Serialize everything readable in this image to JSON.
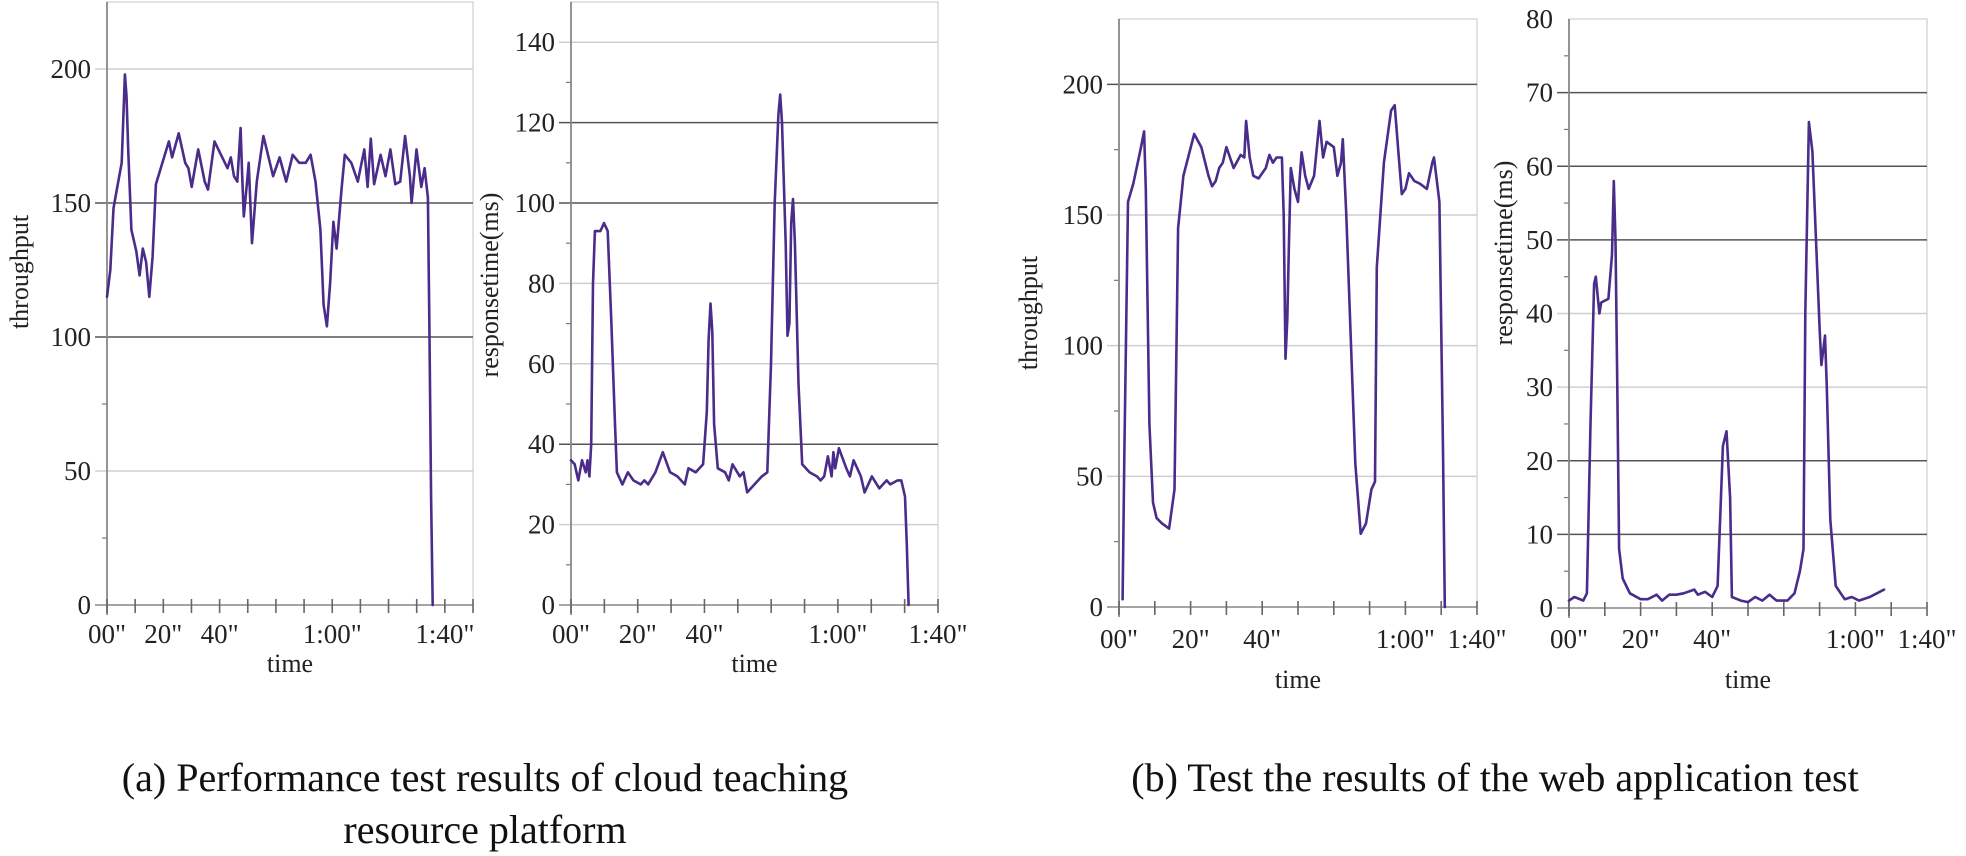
{
  "figure": {
    "caption_a_line1": "(a) Performance test results of cloud teaching",
    "caption_a_line2": "resource platform",
    "caption_b": "(b) Test the results of the web application test",
    "line_color": "#4a2c8a",
    "grid_major_color": "#555555",
    "grid_minor_color": "#cfcfcf",
    "axis_color": "#9a9a9a"
  },
  "chart_data": [
    {
      "id": "a-throughput",
      "type": "line",
      "group": "(a) Performance test results of cloud teaching resource platform",
      "title": "",
      "xlabel": "time",
      "ylabel": "throughput",
      "ylim": [
        0,
        225
      ],
      "yticks": [
        0,
        50,
        100,
        150,
        200
      ],
      "dark_gridlines": [
        100,
        150
      ],
      "light_gridlines": [
        50,
        200
      ],
      "minor_ticks": [
        25,
        75
      ],
      "xtick_count": 14,
      "xtick_labels": [
        {
          "label": "00\"",
          "tick": 0
        },
        {
          "label": "20\"",
          "tick": 2
        },
        {
          "label": "40\"",
          "tick": 4
        },
        {
          "label": "1:00\"",
          "tick": 8
        },
        {
          "label": "1:40\"",
          "tick": 12
        }
      ],
      "points": [
        [
          0.0,
          115
        ],
        [
          0.01,
          125
        ],
        [
          0.02,
          148
        ],
        [
          0.03,
          155
        ],
        [
          0.045,
          165
        ],
        [
          0.055,
          198
        ],
        [
          0.06,
          190
        ],
        [
          0.065,
          170
        ],
        [
          0.075,
          140
        ],
        [
          0.09,
          132
        ],
        [
          0.1,
          123
        ],
        [
          0.11,
          133
        ],
        [
          0.12,
          128
        ],
        [
          0.13,
          115
        ],
        [
          0.14,
          130
        ],
        [
          0.15,
          157
        ],
        [
          0.17,
          165
        ],
        [
          0.19,
          173
        ],
        [
          0.2,
          167
        ],
        [
          0.22,
          176
        ],
        [
          0.24,
          165
        ],
        [
          0.25,
          163
        ],
        [
          0.26,
          156
        ],
        [
          0.28,
          170
        ],
        [
          0.3,
          158
        ],
        [
          0.31,
          155
        ],
        [
          0.33,
          173
        ],
        [
          0.35,
          168
        ],
        [
          0.37,
          163
        ],
        [
          0.38,
          167
        ],
        [
          0.39,
          160
        ],
        [
          0.4,
          158
        ],
        [
          0.41,
          178
        ],
        [
          0.415,
          160
        ],
        [
          0.42,
          145
        ],
        [
          0.43,
          158
        ],
        [
          0.435,
          165
        ],
        [
          0.445,
          135
        ],
        [
          0.46,
          158
        ],
        [
          0.48,
          175
        ],
        [
          0.5,
          165
        ],
        [
          0.51,
          160
        ],
        [
          0.53,
          167
        ],
        [
          0.55,
          158
        ],
        [
          0.57,
          168
        ],
        [
          0.59,
          165
        ],
        [
          0.61,
          165
        ],
        [
          0.625,
          168
        ],
        [
          0.64,
          158
        ],
        [
          0.655,
          140
        ],
        [
          0.665,
          112
        ],
        [
          0.675,
          104
        ],
        [
          0.685,
          120
        ],
        [
          0.695,
          143
        ],
        [
          0.705,
          133
        ],
        [
          0.72,
          155
        ],
        [
          0.73,
          168
        ],
        [
          0.75,
          165
        ],
        [
          0.77,
          158
        ],
        [
          0.79,
          170
        ],
        [
          0.8,
          156
        ],
        [
          0.81,
          174
        ],
        [
          0.82,
          157
        ],
        [
          0.84,
          168
        ],
        [
          0.855,
          160
        ],
        [
          0.87,
          170
        ],
        [
          0.885,
          157
        ],
        [
          0.9,
          158
        ],
        [
          0.915,
          175
        ],
        [
          0.93,
          160
        ],
        [
          0.935,
          150
        ],
        [
          0.95,
          170
        ],
        [
          0.965,
          156
        ],
        [
          0.975,
          163
        ],
        [
          0.985,
          152
        ],
        [
          0.99,
          100
        ],
        [
          0.995,
          40
        ],
        [
          1.0,
          0
        ]
      ],
      "x_end_fraction": 0.89
    },
    {
      "id": "a-responsetime",
      "type": "line",
      "group": "(a) Performance test results of cloud teaching resource platform",
      "title": "",
      "xlabel": "time",
      "ylabel": "responsetime(ms)",
      "ylim": [
        0,
        150
      ],
      "yticks": [
        0,
        20,
        40,
        60,
        80,
        100,
        120,
        140
      ],
      "dark_gridlines": [
        40,
        100,
        120
      ],
      "light_gridlines": [
        20,
        60,
        80,
        140
      ],
      "minor_ticks": [
        10,
        30,
        50,
        70,
        90,
        110,
        130
      ],
      "xtick_count": 12,
      "xtick_labels": [
        {
          "label": "00\"",
          "tick": 0
        },
        {
          "label": "20\"",
          "tick": 2
        },
        {
          "label": "40\"",
          "tick": 4
        },
        {
          "label": "1:00\"",
          "tick": 8
        },
        {
          "label": "1:40\"",
          "tick": 11
        }
      ],
      "points": [
        [
          0.0,
          36
        ],
        [
          0.01,
          35
        ],
        [
          0.02,
          31
        ],
        [
          0.03,
          36
        ],
        [
          0.04,
          33
        ],
        [
          0.045,
          36
        ],
        [
          0.05,
          32
        ],
        [
          0.055,
          40
        ],
        [
          0.06,
          80
        ],
        [
          0.065,
          93
        ],
        [
          0.08,
          93
        ],
        [
          0.09,
          95
        ],
        [
          0.1,
          93
        ],
        [
          0.11,
          70
        ],
        [
          0.12,
          45
        ],
        [
          0.125,
          33
        ],
        [
          0.14,
          30
        ],
        [
          0.155,
          33
        ],
        [
          0.17,
          31
        ],
        [
          0.19,
          30
        ],
        [
          0.2,
          31
        ],
        [
          0.21,
          30
        ],
        [
          0.23,
          33
        ],
        [
          0.25,
          38
        ],
        [
          0.27,
          33
        ],
        [
          0.29,
          32
        ],
        [
          0.31,
          30
        ],
        [
          0.32,
          34
        ],
        [
          0.34,
          33
        ],
        [
          0.36,
          35
        ],
        [
          0.37,
          48
        ],
        [
          0.375,
          66
        ],
        [
          0.38,
          75
        ],
        [
          0.385,
          68
        ],
        [
          0.39,
          45
        ],
        [
          0.4,
          34
        ],
        [
          0.42,
          33
        ],
        [
          0.43,
          31
        ],
        [
          0.44,
          35
        ],
        [
          0.46,
          32
        ],
        [
          0.47,
          33
        ],
        [
          0.48,
          28
        ],
        [
          0.5,
          30
        ],
        [
          0.52,
          32
        ],
        [
          0.535,
          33
        ],
        [
          0.545,
          60
        ],
        [
          0.555,
          100
        ],
        [
          0.565,
          122
        ],
        [
          0.57,
          127
        ],
        [
          0.575,
          120
        ],
        [
          0.585,
          90
        ],
        [
          0.59,
          67
        ],
        [
          0.595,
          70
        ],
        [
          0.6,
          95
        ],
        [
          0.605,
          101
        ],
        [
          0.61,
          90
        ],
        [
          0.62,
          55
        ],
        [
          0.63,
          35
        ],
        [
          0.65,
          33
        ],
        [
          0.67,
          32
        ],
        [
          0.68,
          31
        ],
        [
          0.69,
          32
        ],
        [
          0.7,
          37
        ],
        [
          0.71,
          32
        ],
        [
          0.715,
          38
        ],
        [
          0.72,
          34
        ],
        [
          0.73,
          39
        ],
        [
          0.75,
          34
        ],
        [
          0.76,
          32
        ],
        [
          0.77,
          36
        ],
        [
          0.79,
          32
        ],
        [
          0.8,
          28
        ],
        [
          0.82,
          32
        ],
        [
          0.84,
          29
        ],
        [
          0.86,
          31
        ],
        [
          0.87,
          30
        ],
        [
          0.89,
          31
        ],
        [
          0.9,
          31
        ],
        [
          0.91,
          27
        ],
        [
          0.915,
          15
        ],
        [
          0.92,
          0
        ]
      ],
      "x_end_fraction": 1.0
    },
    {
      "id": "b-throughput",
      "type": "line",
      "group": "(b) Test the results of the web application test",
      "title": "",
      "xlabel": "time",
      "ylabel": "throughput",
      "ylim": [
        0,
        225
      ],
      "yticks": [
        0,
        50,
        100,
        150,
        200
      ],
      "dark_gridlines": [
        200
      ],
      "light_gridlines": [
        50,
        100,
        150
      ],
      "minor_ticks": [
        25,
        75,
        125,
        175
      ],
      "xtick_count": 11,
      "xtick_labels": [
        {
          "label": "00\"",
          "tick": 0
        },
        {
          "label": "20\"",
          "tick": 2
        },
        {
          "label": "40\"",
          "tick": 4
        },
        {
          "label": "1:00\"",
          "tick": 8
        },
        {
          "label": "1:40\"",
          "tick": 10
        }
      ],
      "points": [
        [
          0.01,
          3
        ],
        [
          0.015,
          60
        ],
        [
          0.025,
          155
        ],
        [
          0.04,
          162
        ],
        [
          0.06,
          175
        ],
        [
          0.07,
          182
        ],
        [
          0.075,
          160
        ],
        [
          0.085,
          70
        ],
        [
          0.095,
          40
        ],
        [
          0.105,
          34
        ],
        [
          0.12,
          32
        ],
        [
          0.14,
          30
        ],
        [
          0.155,
          45
        ],
        [
          0.165,
          145
        ],
        [
          0.18,
          165
        ],
        [
          0.21,
          181
        ],
        [
          0.23,
          176
        ],
        [
          0.25,
          165
        ],
        [
          0.26,
          161
        ],
        [
          0.27,
          163
        ],
        [
          0.28,
          168
        ],
        [
          0.29,
          170
        ],
        [
          0.3,
          176
        ],
        [
          0.32,
          168
        ],
        [
          0.34,
          173
        ],
        [
          0.35,
          172
        ],
        [
          0.355,
          186
        ],
        [
          0.365,
          172
        ],
        [
          0.375,
          165
        ],
        [
          0.39,
          164
        ],
        [
          0.41,
          168
        ],
        [
          0.42,
          173
        ],
        [
          0.43,
          170
        ],
        [
          0.44,
          172
        ],
        [
          0.455,
          172
        ],
        [
          0.46,
          150
        ],
        [
          0.465,
          95
        ],
        [
          0.47,
          110
        ],
        [
          0.475,
          140
        ],
        [
          0.48,
          168
        ],
        [
          0.49,
          160
        ],
        [
          0.5,
          155
        ],
        [
          0.51,
          174
        ],
        [
          0.52,
          165
        ],
        [
          0.53,
          160
        ],
        [
          0.545,
          165
        ],
        [
          0.56,
          186
        ],
        [
          0.57,
          172
        ],
        [
          0.58,
          178
        ],
        [
          0.6,
          176
        ],
        [
          0.61,
          165
        ],
        [
          0.62,
          170
        ],
        [
          0.625,
          179
        ],
        [
          0.635,
          150
        ],
        [
          0.66,
          55
        ],
        [
          0.675,
          28
        ],
        [
          0.69,
          32
        ],
        [
          0.705,
          45
        ],
        [
          0.715,
          48
        ],
        [
          0.72,
          130
        ],
        [
          0.74,
          170
        ],
        [
          0.76,
          190
        ],
        [
          0.77,
          192
        ],
        [
          0.78,
          175
        ],
        [
          0.79,
          158
        ],
        [
          0.8,
          160
        ],
        [
          0.81,
          166
        ],
        [
          0.825,
          163
        ],
        [
          0.84,
          162
        ],
        [
          0.86,
          160
        ],
        [
          0.875,
          170
        ],
        [
          0.88,
          172
        ],
        [
          0.895,
          155
        ],
        [
          0.905,
          60
        ],
        [
          0.91,
          0
        ]
      ],
      "x_end_fraction": 1.0
    },
    {
      "id": "b-responsetime",
      "type": "line",
      "group": "(b) Test the results of the web application test",
      "title": "",
      "xlabel": "time",
      "ylabel": "responsetime(ms)",
      "ylim": [
        0,
        80
      ],
      "yticks": [
        0,
        10,
        20,
        30,
        40,
        50,
        60,
        70,
        80
      ],
      "dark_gridlines": [
        10,
        20,
        50,
        60,
        70
      ],
      "light_gridlines": [
        30,
        40
      ],
      "minor_ticks": [
        5,
        15,
        25,
        35,
        45,
        55,
        65,
        75
      ],
      "xtick_count": 11,
      "xtick_labels": [
        {
          "label": "00\"",
          "tick": 0
        },
        {
          "label": "20\"",
          "tick": 2
        },
        {
          "label": "40\"",
          "tick": 4
        },
        {
          "label": "1:00\"",
          "tick": 8
        },
        {
          "label": "1:40\"",
          "tick": 10
        }
      ],
      "points": [
        [
          0.0,
          1
        ],
        [
          0.015,
          1.5
        ],
        [
          0.04,
          1
        ],
        [
          0.05,
          2
        ],
        [
          0.06,
          25
        ],
        [
          0.07,
          44
        ],
        [
          0.075,
          45
        ],
        [
          0.085,
          40
        ],
        [
          0.09,
          41.5
        ],
        [
          0.11,
          42
        ],
        [
          0.12,
          48
        ],
        [
          0.125,
          58
        ],
        [
          0.13,
          50
        ],
        [
          0.135,
          30
        ],
        [
          0.14,
          8
        ],
        [
          0.15,
          4
        ],
        [
          0.17,
          2
        ],
        [
          0.2,
          1.2
        ],
        [
          0.22,
          1.2
        ],
        [
          0.245,
          1.8
        ],
        [
          0.26,
          1
        ],
        [
          0.28,
          1.8
        ],
        [
          0.3,
          1.8
        ],
        [
          0.32,
          2
        ],
        [
          0.35,
          2.5
        ],
        [
          0.36,
          1.8
        ],
        [
          0.38,
          2.2
        ],
        [
          0.4,
          1.5
        ],
        [
          0.415,
          3
        ],
        [
          0.43,
          22
        ],
        [
          0.44,
          24
        ],
        [
          0.45,
          15
        ],
        [
          0.455,
          1.5
        ],
        [
          0.48,
          1
        ],
        [
          0.5,
          0.8
        ],
        [
          0.52,
          1.5
        ],
        [
          0.54,
          1
        ],
        [
          0.56,
          1.8
        ],
        [
          0.58,
          1
        ],
        [
          0.61,
          1
        ],
        [
          0.63,
          2
        ],
        [
          0.645,
          5
        ],
        [
          0.655,
          8
        ],
        [
          0.66,
          40
        ],
        [
          0.67,
          66
        ],
        [
          0.68,
          62
        ],
        [
          0.69,
          50
        ],
        [
          0.7,
          38
        ],
        [
          0.705,
          33
        ],
        [
          0.71,
          35
        ],
        [
          0.715,
          37
        ],
        [
          0.72,
          30
        ],
        [
          0.73,
          12
        ],
        [
          0.745,
          3
        ],
        [
          0.77,
          1.2
        ],
        [
          0.79,
          1.5
        ],
        [
          0.81,
          1
        ],
        [
          0.84,
          1.5
        ],
        [
          0.86,
          2
        ],
        [
          0.88,
          2.5
        ]
      ],
      "x_end_fraction": 1.0
    }
  ]
}
